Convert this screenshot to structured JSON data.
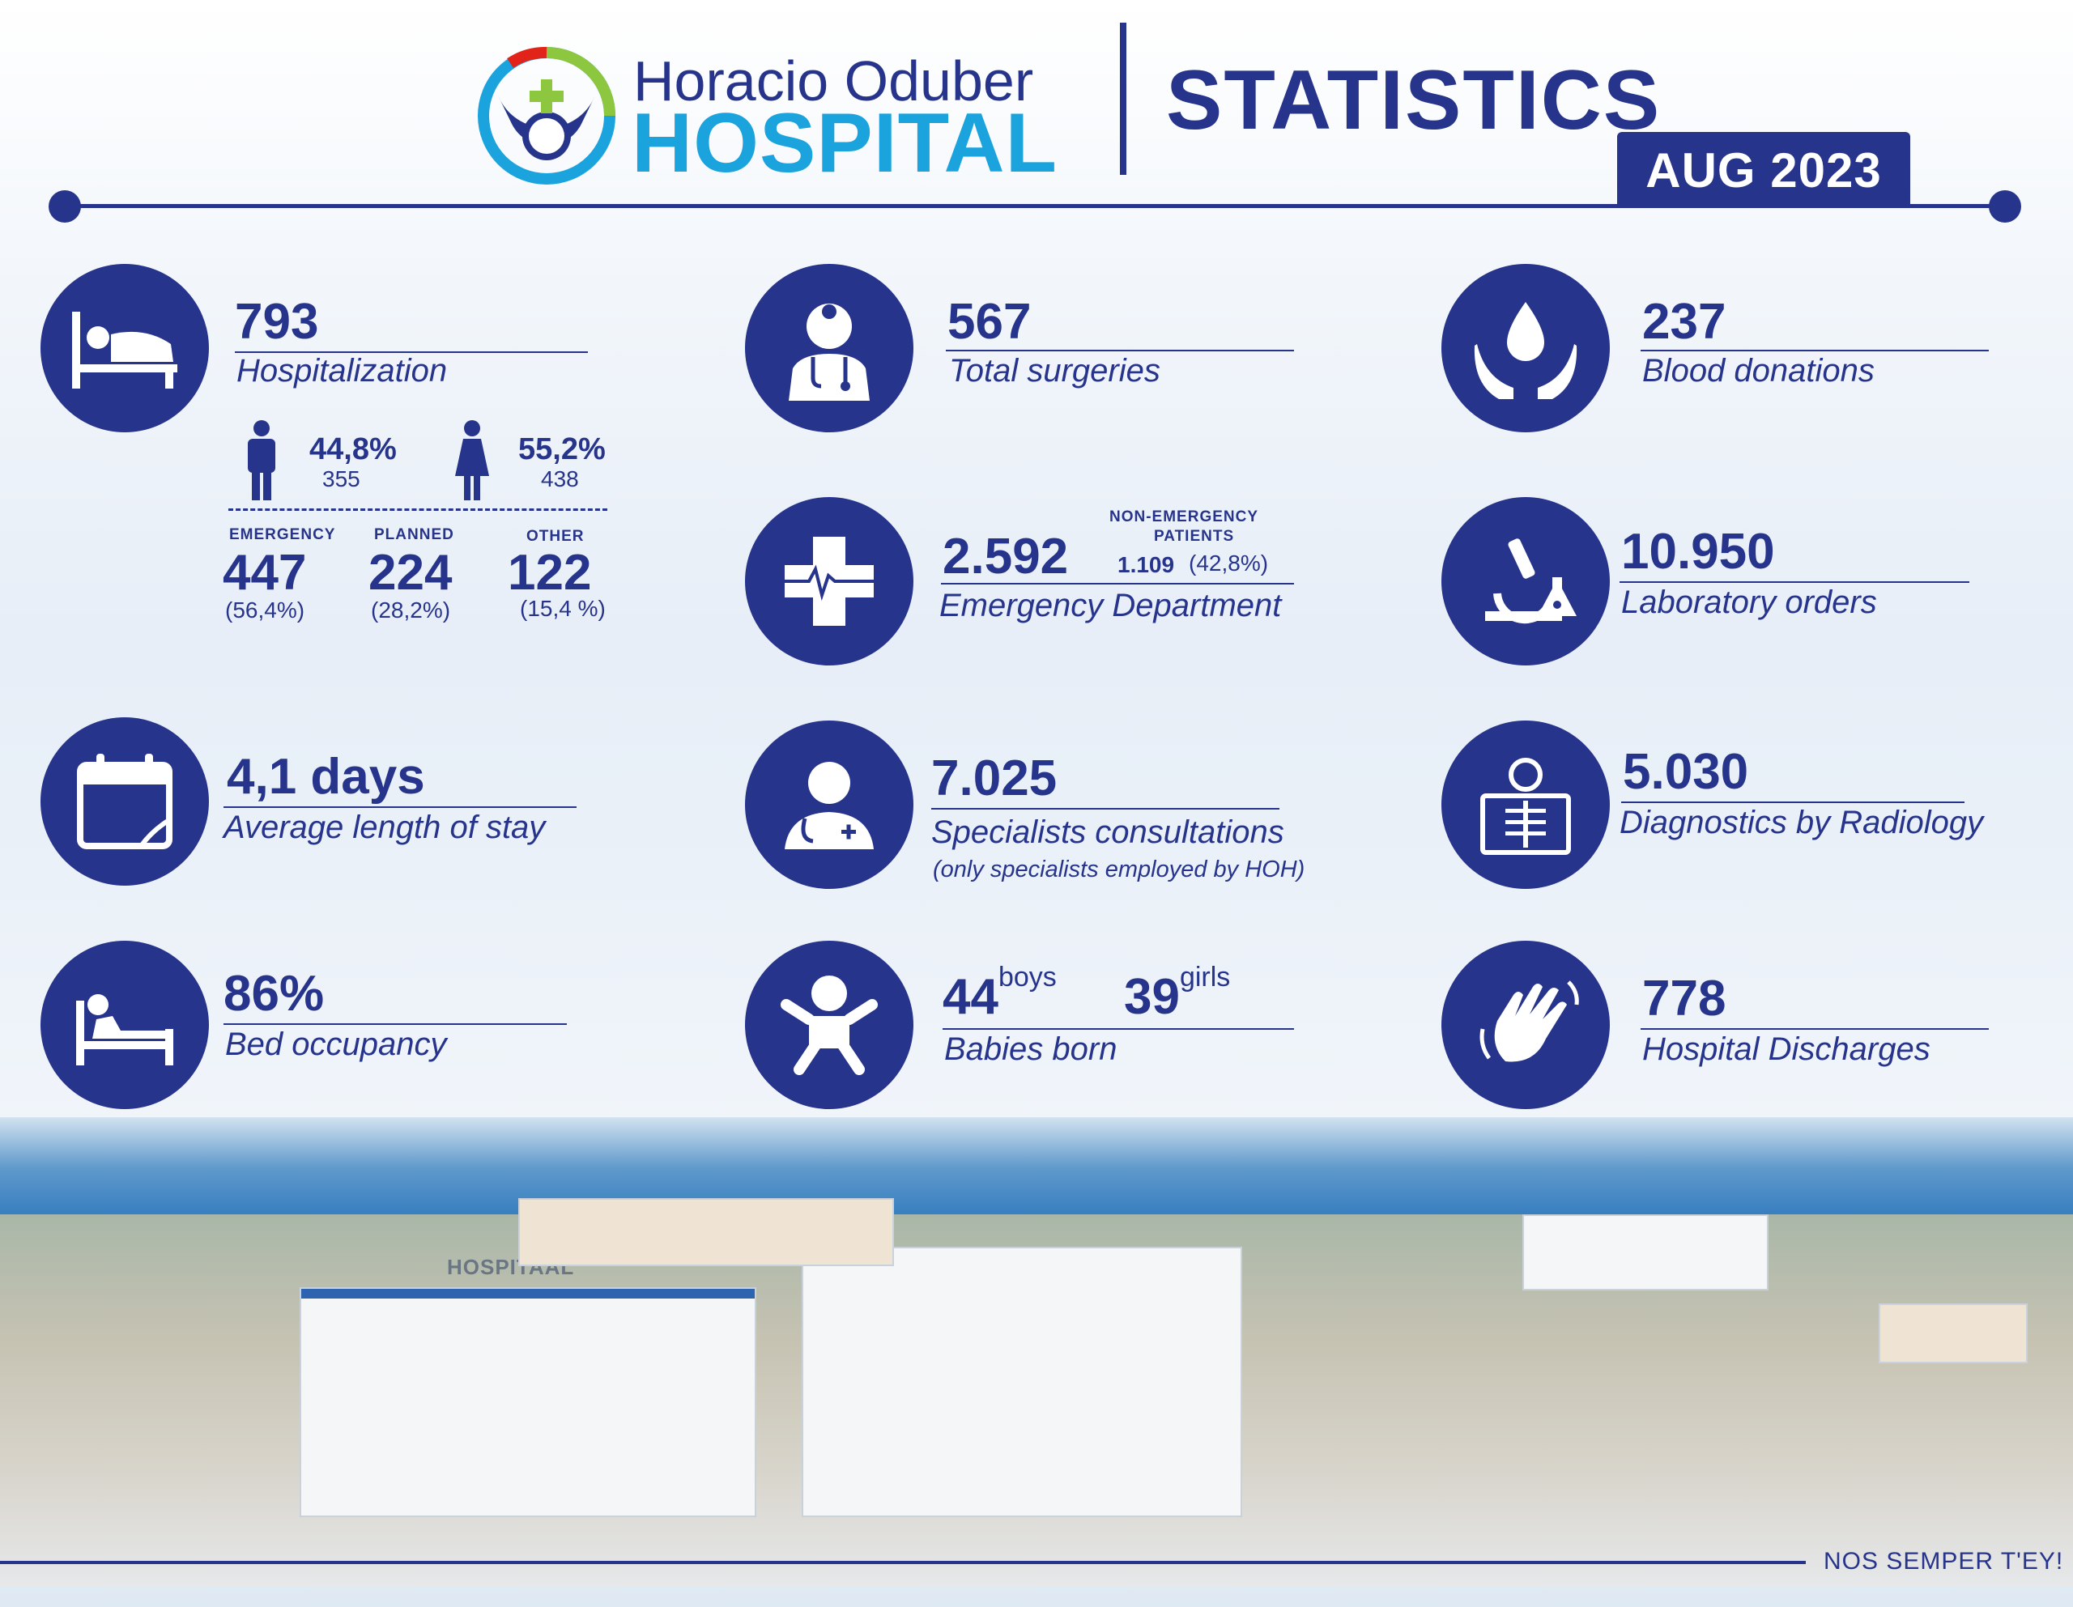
{
  "header": {
    "brand_line1": "Horacio Oduber",
    "brand_line2": "HOSPITAL",
    "title": "STATISTICS",
    "period": "AUG 2023"
  },
  "hospitalization": {
    "value": "793",
    "label": "Hospitalization",
    "male_pct": "44,8%",
    "male_count": "355",
    "female_pct": "55,2%",
    "female_count": "438",
    "emergency_cap": "EMERGENCY",
    "emergency_value": "447",
    "emergency_pct": "(56,4%)",
    "planned_cap": "PLANNED",
    "planned_value": "224",
    "planned_pct": "(28,2%)",
    "other_cap": "OTHER",
    "other_value": "122",
    "other_pct": "(15,4 %)"
  },
  "surgeries": {
    "value": "567",
    "label": "Total surgeries"
  },
  "blood": {
    "value": "237",
    "label": "Blood donations"
  },
  "emergency": {
    "value": "2.592",
    "label": "Emergency Department",
    "nonemergency_cap1": "NON-EMERGENCY",
    "nonemergency_cap2": "PATIENTS",
    "nonemergency_value": "1.109",
    "nonemergency_pct": "(42,8%)"
  },
  "laboratory": {
    "value": "10.950",
    "label": "Laboratory orders"
  },
  "stay": {
    "value": "4,1 days",
    "label": "Average length of  stay"
  },
  "specialists": {
    "value": "7.025",
    "label": "Specialists consultations",
    "note": "(only specialists employed by HOH)"
  },
  "radiology": {
    "value": "5.030",
    "label": "Diagnostics by Radiology"
  },
  "occupancy": {
    "value": "86%",
    "label": "Bed occupancy"
  },
  "babies": {
    "boys_value": "44",
    "boys_label": "boys",
    "girls_value": "39",
    "girls_label": "girls",
    "label": "Babies born"
  },
  "discharges": {
    "value": "778",
    "label": "Hospital Discharges"
  },
  "photo": {
    "building_sign": "HOSPITAAL"
  },
  "footer": {
    "motto": "NOS SEMPER T'EY!"
  },
  "colors": {
    "primary": "#27348b",
    "accent": "#1aa3dd",
    "logo_green": "#8dc63f",
    "logo_red": "#e2231a"
  }
}
